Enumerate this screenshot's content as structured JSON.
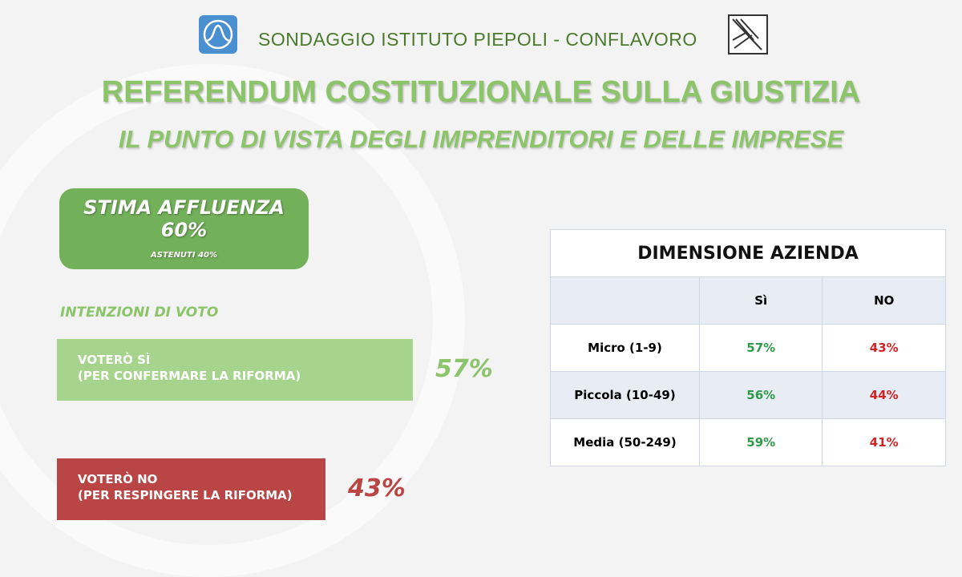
{
  "header": {
    "subtitle": "SONDAGGIO ISTITUTO PIEPOLI - CONFLAVORO",
    "title": "REFERENDUM COSTITUZIONALE SULLA GIUSTIZIA",
    "title2": "IL PUNTO DI VISTA DEGLI IMPRENDITORI E DELLE IMPRESE"
  },
  "turnout": {
    "label": "STIMA AFFLUENZA",
    "value": "60%",
    "abstain": "ASTENUTI 40%"
  },
  "chart_data": {
    "type": "bar",
    "title": "INTENZIONI DI VOTO",
    "categories": [
      "VOTERÒ SÌ\n(PER CONFERMARE LA RIFORMA)",
      "VOTERÒ NO\n(PER RESPINGERE LA RIFORMA)"
    ],
    "labels": [
      [
        "VOTERÒ SÌ",
        "(PER CONFERMARE LA RIFORMA)"
      ],
      [
        "VOTERÒ NO",
        "(PER RESPINGERE LA RIFORMA)"
      ]
    ],
    "values": [
      57,
      43
    ],
    "value_labels": [
      "57%",
      "43%"
    ],
    "colors": [
      "#a6d48c",
      "#b94545"
    ],
    "label_colors": [
      "#8cc46a",
      "#b94545"
    ]
  },
  "table": {
    "title": "DIMENSIONE AZIENDA",
    "columns": [
      "",
      "Sì",
      "NO"
    ],
    "rows": [
      [
        "Micro (1-9)",
        "57%",
        "43%"
      ],
      [
        "Piccola (10-49)",
        "56%",
        "44%"
      ],
      [
        "Media (50-249)",
        "59%",
        "41%"
      ]
    ]
  }
}
